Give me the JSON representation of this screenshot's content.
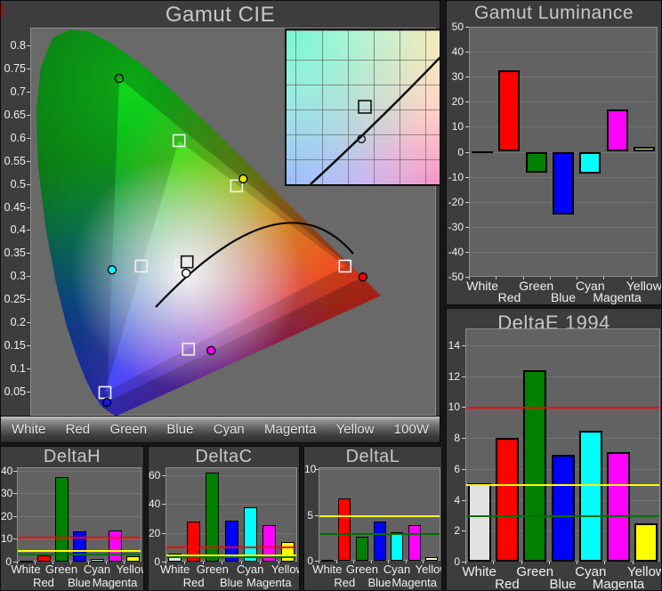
{
  "chart_data": [
    {
      "id": "gamut_cie",
      "type": "scatter",
      "title": "Gamut CIE",
      "xlabel": "",
      "ylabel": "",
      "ylim": [
        0.05,
        0.8
      ],
      "y_tick_labels": [
        "0.8",
        "0.75",
        "0.7",
        "0.65",
        "0.6",
        "0.55",
        "0.5",
        "0.45",
        "0.4",
        "0.35",
        "0.3",
        "0.25",
        "0.2",
        "0.15",
        "0.1",
        "0.05"
      ],
      "legend_bar": [
        "White",
        "Red",
        "Green",
        "Blue",
        "Cyan",
        "Magenta",
        "Yellow",
        "100W"
      ],
      "reference_points": [
        {
          "name": "White",
          "x": 0.312,
          "y": 0.33,
          "stroke": "#f2f2f2"
        },
        {
          "name": "Red",
          "x": 0.659,
          "y": 0.328,
          "stroke": "#f2f2f2"
        },
        {
          "name": "Green",
          "x": 0.307,
          "y": 0.594,
          "stroke": "#f2f2f2"
        },
        {
          "name": "Blue",
          "x": 0.15,
          "y": 0.06,
          "stroke": "#f2f2f2"
        },
        {
          "name": "Cyan",
          "x": 0.227,
          "y": 0.328,
          "stroke": "#f2f2f2"
        },
        {
          "name": "Magenta",
          "x": 0.327,
          "y": 0.152,
          "stroke": "#f2f2f2"
        },
        {
          "name": "Yellow",
          "x": 0.429,
          "y": 0.498,
          "stroke": "#f2f2f2"
        },
        {
          "name": "White-target",
          "x": 0.324,
          "y": 0.337,
          "stroke": "#111111"
        }
      ],
      "measured_points": [
        {
          "name": "White",
          "x": 0.322,
          "y": 0.313,
          "fill": "#ffffff"
        },
        {
          "name": "Red",
          "x": 0.697,
          "y": 0.305,
          "fill": "#ff0000"
        },
        {
          "name": "Green",
          "x": 0.18,
          "y": 0.726,
          "fill": "none"
        },
        {
          "name": "Blue",
          "x": 0.154,
          "y": 0.039,
          "fill": "#1515ee"
        },
        {
          "name": "Cyan",
          "x": 0.165,
          "y": 0.32,
          "fill": "#00ffff"
        },
        {
          "name": "Magenta",
          "x": 0.375,
          "y": 0.149,
          "fill": "#ff00ff"
        },
        {
          "name": "Yellow",
          "x": 0.443,
          "y": 0.513,
          "fill": "#e8e800"
        }
      ],
      "gamut_triangle_reference": [
        [
          0.307,
          0.594
        ],
        [
          0.659,
          0.328
        ],
        [
          0.15,
          0.06
        ]
      ],
      "gamut_triangle_measured": [
        [
          0.18,
          0.726
        ],
        [
          0.697,
          0.305
        ],
        [
          0.154,
          0.039
        ]
      ],
      "inset_markers": {
        "square": {
          "fx": 0.503,
          "fy": 0.497
        },
        "circle": {
          "fx": 0.481,
          "fy": 0.706
        }
      }
    },
    {
      "id": "gamut_luminance",
      "type": "bar",
      "title": "Gamut Luminance",
      "categories": [
        "White",
        "Red",
        "Green",
        "Blue",
        "Cyan",
        "Magenta",
        "Yellow"
      ],
      "values": [
        0,
        32.5,
        -8.2,
        -25.1,
        -8.6,
        16.8,
        1.8
      ],
      "colors": [
        "#000000",
        "#ff0000",
        "#008000",
        "#0000ff",
        "#00ffff",
        "#ff00ff",
        "#ffffaa"
      ],
      "ylim": [
        -50,
        50
      ],
      "ytick_step": 10,
      "ref_lines": []
    },
    {
      "id": "deltae_1994",
      "type": "bar",
      "title": "DeltaE 1994",
      "categories": [
        "White",
        "Red",
        "Green",
        "Blue",
        "Cyan",
        "Magenta",
        "Yellow"
      ],
      "values": [
        5.05,
        8.0,
        12.4,
        6.9,
        8.5,
        7.1,
        2.5
      ],
      "colors": [
        "#e2e2e2",
        "#ff0000",
        "#008000",
        "#0000ff",
        "#00ffff",
        "#ff00ff",
        "#ffff00"
      ],
      "ylim": [
        0,
        15.1
      ],
      "ytick_step": 2,
      "ref_lines": [
        {
          "value": 10,
          "color": "#ff0000"
        },
        {
          "value": 5,
          "color": "#ffff00"
        },
        {
          "value": 3,
          "color": "#007000"
        }
      ]
    },
    {
      "id": "delta_h",
      "type": "bar",
      "title": "DeltaH",
      "categories": [
        "White",
        "Red",
        "Green",
        "Blue",
        "Cyan",
        "Magenta",
        "Yellow"
      ],
      "values": [
        0,
        2.7,
        37.2,
        13.4,
        1.2,
        13.7,
        2.5
      ],
      "colors": [
        "#e2e2e2",
        "#ff0000",
        "#008000",
        "#0000ff",
        "#b8f0ee",
        "#ff00ff",
        "#ffff00"
      ],
      "ylim": [
        0,
        41.5
      ],
      "ytick_step": 10,
      "ref_lines": [
        {
          "value": 10.8,
          "color": "#ff0000"
        },
        {
          "value": 5.2,
          "color": "#ffff00"
        },
        {
          "value": 3.4,
          "color": "#007000"
        }
      ]
    },
    {
      "id": "delta_c",
      "type": "bar",
      "title": "DeltaC",
      "categories": [
        "White",
        "Red",
        "Green",
        "Blue",
        "Cyan",
        "Magenta",
        "Yellow"
      ],
      "values": [
        5.5,
        27.6,
        61.5,
        28.4,
        37.5,
        25.4,
        13.8
      ],
      "colors": [
        "#e2e2e2",
        "#ff0000",
        "#008000",
        "#0000ff",
        "#00ffff",
        "#ff00ff",
        "#ffff00"
      ],
      "ylim": [
        0,
        65.5
      ],
      "ytick_step": 20,
      "ref_lines": [
        {
          "value": 10.8,
          "color": "#ff0000"
        },
        {
          "value": 5.2,
          "color": "#ffff00"
        },
        {
          "value": 3.8,
          "color": "#007000"
        }
      ]
    },
    {
      "id": "delta_l",
      "type": "bar",
      "title": "DeltaL",
      "categories": [
        "White",
        "Red",
        "Green",
        "Blue",
        "Cyan",
        "Magenta",
        "Yellow"
      ],
      "values": [
        0,
        6.8,
        2.6,
        4.3,
        3.1,
        3.9,
        0.4
      ],
      "colors": [
        "#e2e2e2",
        "#ff0000",
        "#008000",
        "#0000ff",
        "#00ffff",
        "#ff00ff",
        "#ffffbb"
      ],
      "ylim": [
        0,
        10.2
      ],
      "ytick_step": 5,
      "ref_lines": [
        {
          "value": 5.0,
          "color": "#ffff00"
        },
        {
          "value": 3.05,
          "color": "#007000"
        }
      ]
    }
  ],
  "theme": {
    "panel_bg": "#3d3d3d",
    "plot_bg": "#626262",
    "title_color": "#c8c8c8",
    "tick_color": "#f0f0f0"
  }
}
